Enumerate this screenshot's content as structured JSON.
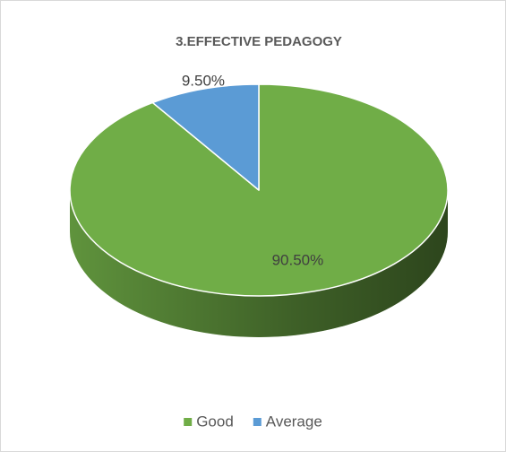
{
  "chart_data": {
    "type": "pie",
    "title": "3.EFFECTIVE PEDAGOGY",
    "categories": [
      "Good",
      "Average"
    ],
    "values": [
      90.5,
      9.5
    ],
    "value_labels": [
      "90.50%",
      "9.50%"
    ],
    "colors": [
      "#70ad47",
      "#5b9bd5"
    ],
    "legend": "bottom"
  }
}
